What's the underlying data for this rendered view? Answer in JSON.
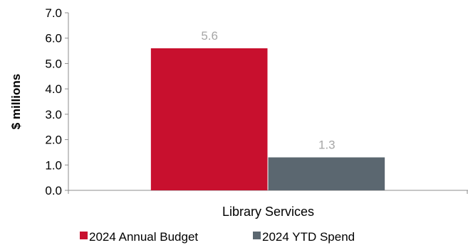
{
  "chart_data": {
    "type": "bar",
    "categories": [
      "Library Services"
    ],
    "series": [
      {
        "name": "2024 Annual Budget",
        "values": [
          5.6
        ],
        "color": "#c8102e"
      },
      {
        "name": "2024 YTD Spend",
        "values": [
          1.3
        ],
        "color": "#5b6770"
      }
    ],
    "data_labels": [
      "5.6",
      "1.3"
    ],
    "ylabel": "$ millions",
    "ylim": [
      0,
      7
    ],
    "yticks": [
      0,
      1,
      2,
      3,
      4,
      5,
      6,
      7
    ],
    "ytick_labels": [
      "0.0",
      "1.0",
      "2.0",
      "3.0",
      "4.0",
      "5.0",
      "6.0",
      "7.0"
    ],
    "grid": false,
    "legend_position": "bottom"
  }
}
